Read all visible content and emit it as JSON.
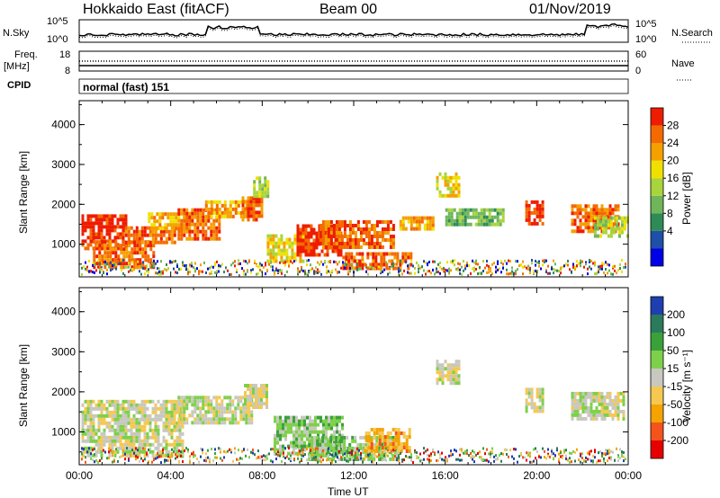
{
  "header": {
    "site": "Hokkaido East (fitACF)",
    "beam": "Beam 00",
    "date": "01/Nov/2019"
  },
  "top_panels": {
    "nsky_label": "N.Sky",
    "nsky_ticks": [
      "10^5",
      "10^0"
    ],
    "nsearch_label": "N.Search",
    "nsearch_ticks": [
      "10^5",
      "10^0"
    ],
    "freq_label": "Freq.",
    "freq_unit": "[MHz]",
    "freq_ticks": [
      "18",
      "8"
    ],
    "nave_label": "Nave",
    "nave_ticks": [
      "60",
      "0"
    ],
    "cpid_label": "CPID",
    "cpid_value": "normal (fast) 151"
  },
  "colors": {
    "power_scale": [
      "#0000e6",
      "#1f4fa8",
      "#2e8b57",
      "#6fb55a",
      "#a8d43c",
      "#f0e000",
      "#f4a000",
      "#f46a00",
      "#ee1c00"
    ],
    "velocity_scale": [
      "#e60000",
      "#f4541c",
      "#f4a300",
      "#f6c850",
      "#c8c8c0",
      "#7ed04a",
      "#3aa13a",
      "#2b7a5c",
      "#1f3fb0"
    ]
  },
  "chart_data": [
    {
      "type": "heatmap",
      "name": "power-panel",
      "xlabel": "",
      "ylabel": "Slant Range [km]",
      "yticks": [
        "1000",
        "2000",
        "3000",
        "4000"
      ],
      "ylim": [
        180,
        4600
      ],
      "xlim": [
        0,
        24
      ],
      "colorbar": {
        "label": "Power [dB]",
        "ticks": [
          "28",
          "24",
          "20",
          "16",
          "12",
          "8",
          "4"
        ],
        "range": [
          0,
          32
        ]
      },
      "regions": [
        {
          "t0": 0.1,
          "t1": 2.0,
          "r0": 900,
          "r1": 1750,
          "level": 8
        },
        {
          "t0": 0.6,
          "t1": 3.2,
          "r0": 400,
          "r1": 1100,
          "level": 7
        },
        {
          "t0": 2.0,
          "t1": 4.2,
          "r0": 1000,
          "r1": 1450,
          "level": 7
        },
        {
          "t0": 3.0,
          "t1": 4.8,
          "r0": 1400,
          "r1": 1800,
          "level": 6
        },
        {
          "t0": 4.3,
          "t1": 6.1,
          "r0": 1150,
          "r1": 1900,
          "level": 7
        },
        {
          "t0": 5.5,
          "t1": 7.3,
          "r0": 1700,
          "r1": 2100,
          "level": 6
        },
        {
          "t0": 7.1,
          "t1": 8.0,
          "r0": 1600,
          "r1": 2200,
          "level": 7
        },
        {
          "t0": 7.6,
          "t1": 8.3,
          "r0": 2200,
          "r1": 2700,
          "level": 4
        },
        {
          "t0": 8.2,
          "t1": 9.8,
          "r0": 600,
          "r1": 1250,
          "level": 5
        },
        {
          "t0": 9.5,
          "t1": 11.5,
          "r0": 700,
          "r1": 1500,
          "level": 8
        },
        {
          "t0": 10.5,
          "t1": 13.8,
          "r0": 900,
          "r1": 1600,
          "level": 7
        },
        {
          "t0": 11.5,
          "t1": 14.5,
          "r0": 400,
          "r1": 800,
          "level": 7
        },
        {
          "t0": 14.0,
          "t1": 15.5,
          "r0": 1400,
          "r1": 1700,
          "level": 6
        },
        {
          "t0": 15.6,
          "t1": 16.6,
          "r0": 2200,
          "r1": 2800,
          "level": 5
        },
        {
          "t0": 16.0,
          "t1": 18.5,
          "r0": 1500,
          "r1": 1900,
          "level": 3
        },
        {
          "t0": 19.5,
          "t1": 20.3,
          "r0": 1500,
          "r1": 2100,
          "level": 8
        },
        {
          "t0": 21.5,
          "t1": 23.6,
          "r0": 1300,
          "r1": 2000,
          "level": 7
        },
        {
          "t0": 22.5,
          "t1": 24.0,
          "r0": 1200,
          "r1": 1700,
          "level": 4
        }
      ]
    },
    {
      "type": "heatmap",
      "name": "velocity-panel",
      "xlabel": "Time UT",
      "ylabel": "Slant Range [km]",
      "yticks": [
        "1000",
        "2000",
        "3000",
        "4000"
      ],
      "xticks": [
        "00:00",
        "04:00",
        "08:00",
        "12:00",
        "16:00",
        "20:00",
        "00:00"
      ],
      "ylim": [
        180,
        4600
      ],
      "xlim": [
        0,
        24
      ],
      "colorbar": {
        "label": "Velocity [m s⁻¹]",
        "ticks": [
          "200",
          "100",
          "50",
          "15",
          "-15",
          "-50",
          "-100",
          "-200"
        ],
        "range": [
          -250,
          250
        ]
      },
      "regions": [
        {
          "t0": 0.1,
          "t1": 4.5,
          "r0": 400,
          "r1": 1800,
          "level": 4
        },
        {
          "t0": 4.3,
          "t1": 7.5,
          "r0": 1200,
          "r1": 1900,
          "level": 4
        },
        {
          "t0": 7.2,
          "t1": 8.2,
          "r0": 1600,
          "r1": 2200,
          "level": 4
        },
        {
          "t0": 8.5,
          "t1": 11.5,
          "r0": 500,
          "r1": 1400,
          "level": 5
        },
        {
          "t0": 10.0,
          "t1": 14.0,
          "r0": 300,
          "r1": 900,
          "level": 5
        },
        {
          "t0": 12.5,
          "t1": 14.5,
          "r0": 500,
          "r1": 1100,
          "level": 2
        },
        {
          "t0": 15.6,
          "t1": 16.6,
          "r0": 2200,
          "r1": 2800,
          "level": 4
        },
        {
          "t0": 19.5,
          "t1": 20.3,
          "r0": 1500,
          "r1": 2100,
          "level": 4
        },
        {
          "t0": 21.5,
          "t1": 23.8,
          "r0": 1300,
          "r1": 2000,
          "level": 4
        }
      ]
    }
  ]
}
